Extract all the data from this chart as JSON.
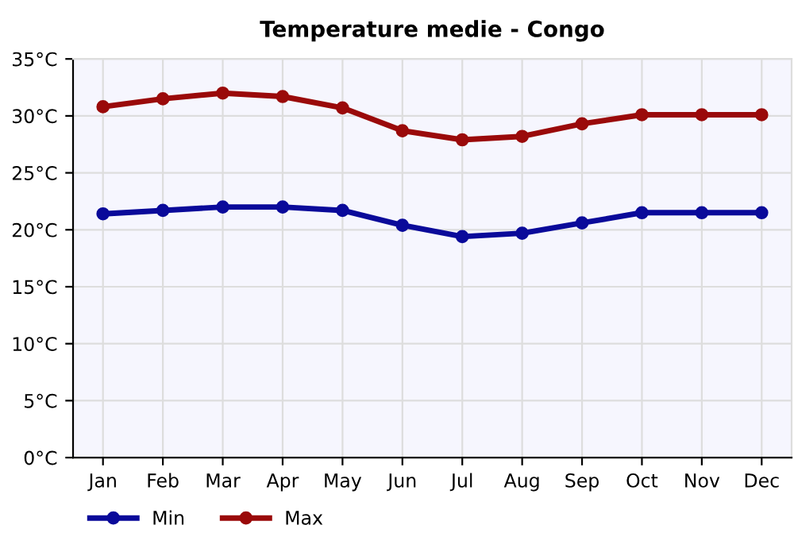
{
  "chart_data": {
    "type": "line",
    "title": "Temperature medie - Congo",
    "categories": [
      "Jan",
      "Feb",
      "Mar",
      "Apr",
      "May",
      "Jun",
      "Jul",
      "Aug",
      "Sep",
      "Oct",
      "Nov",
      "Dec"
    ],
    "series": [
      {
        "name": "Min",
        "color": "#0a0a9a",
        "values": [
          21.4,
          21.7,
          22.0,
          22.0,
          21.7,
          20.4,
          19.4,
          19.7,
          20.6,
          21.5,
          21.5,
          21.5
        ]
      },
      {
        "name": "Max",
        "color": "#9a0a0a",
        "values": [
          30.8,
          31.5,
          32.0,
          31.7,
          30.7,
          28.7,
          27.9,
          28.2,
          29.3,
          30.1,
          30.1,
          30.1
        ]
      }
    ],
    "ylim": [
      0,
      35
    ],
    "yticks": [
      {
        "value": 0,
        "label": "0°C"
      },
      {
        "value": 5,
        "label": "5°C"
      },
      {
        "value": 10,
        "label": "10°C"
      },
      {
        "value": 15,
        "label": "15°C"
      },
      {
        "value": 20,
        "label": "20°C"
      },
      {
        "value": 25,
        "label": "25°C"
      },
      {
        "value": 30,
        "label": "30°C"
      },
      {
        "value": 35,
        "label": "35°C"
      }
    ],
    "grid": true,
    "legend": "bottom left",
    "marker": "circle",
    "line_style": "solid"
  }
}
